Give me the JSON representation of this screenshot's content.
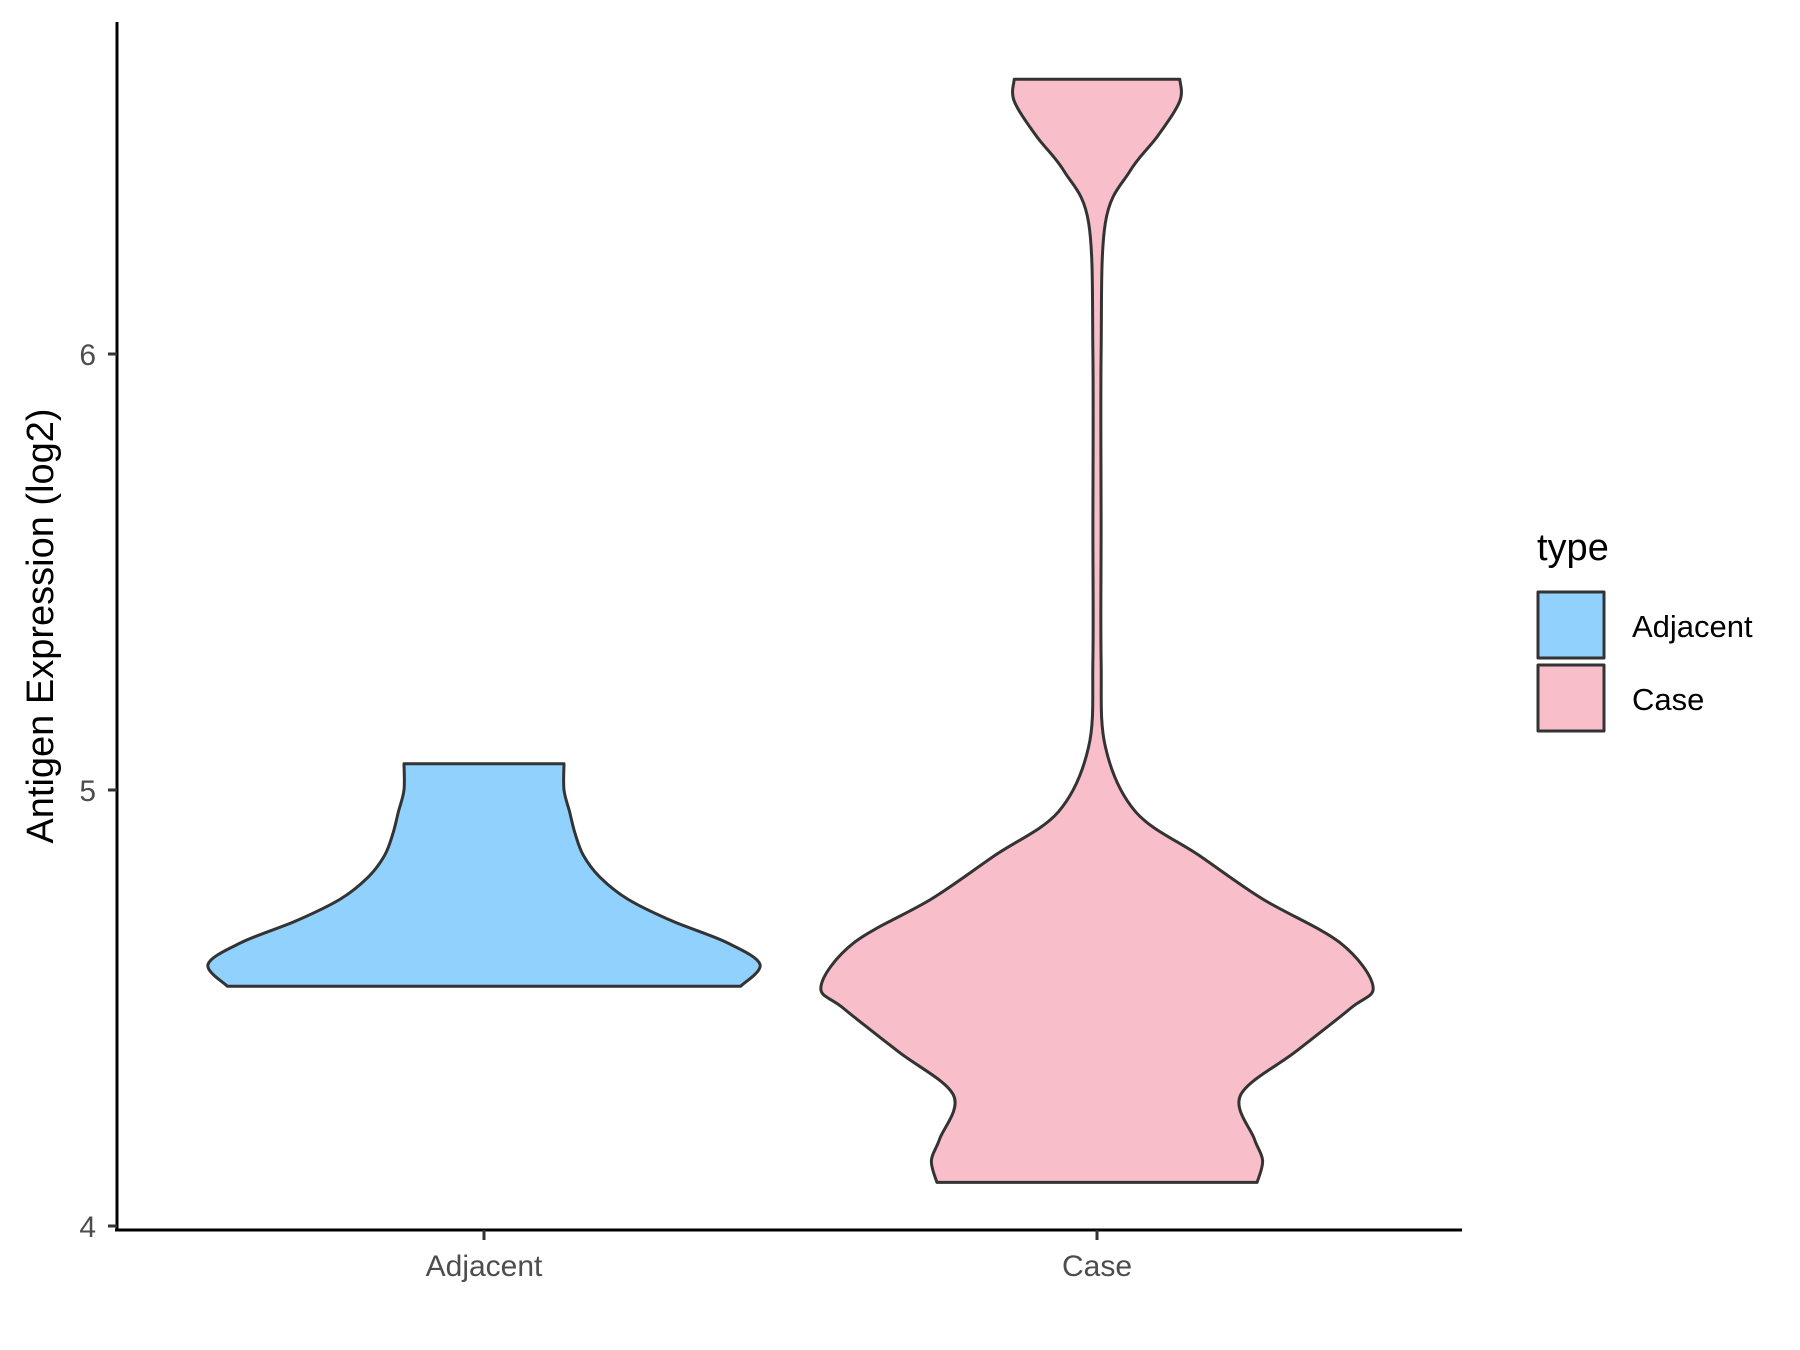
{
  "chart_data": {
    "type": "violin",
    "title": "",
    "xlabel": "",
    "ylabel": "Antigen Expression (log2)",
    "ylim": [
      3.98,
      6.8
    ],
    "yticks": [
      4,
      5,
      6
    ],
    "categories": [
      "Adjacent",
      "Case"
    ],
    "legend": {
      "title": "type",
      "position": "right",
      "entries": [
        {
          "label": "Adjacent",
          "color": "#91d1fd"
        },
        {
          "label": "Case",
          "color": "#f8bfcb"
        }
      ]
    },
    "grid": false,
    "series": [
      {
        "name": "Adjacent",
        "category": "Adjacent",
        "color": "#91d1fd",
        "y_min": 4.55,
        "y_max": 5.06,
        "density_profile": [
          [
            4.55,
            0.93
          ],
          [
            4.6,
            1.0
          ],
          [
            4.65,
            0.88
          ],
          [
            4.7,
            0.68
          ],
          [
            4.75,
            0.52
          ],
          [
            4.8,
            0.42
          ],
          [
            4.85,
            0.36
          ],
          [
            4.9,
            0.33
          ],
          [
            4.95,
            0.31
          ],
          [
            5.0,
            0.29
          ],
          [
            5.06,
            0.29
          ]
        ]
      },
      {
        "name": "Case",
        "category": "Case",
        "color": "#f8bfcb",
        "y_min": 4.1,
        "y_max": 6.63,
        "density_profile": [
          [
            4.1,
            0.58
          ],
          [
            4.15,
            0.6
          ],
          [
            4.2,
            0.57
          ],
          [
            4.3,
            0.52
          ],
          [
            4.4,
            0.72
          ],
          [
            4.5,
            0.92
          ],
          [
            4.55,
            1.0
          ],
          [
            4.65,
            0.88
          ],
          [
            4.75,
            0.6
          ],
          [
            4.85,
            0.37
          ],
          [
            4.95,
            0.14
          ],
          [
            5.1,
            0.03
          ],
          [
            5.3,
            0.015
          ],
          [
            5.6,
            0.015
          ],
          [
            6.0,
            0.015
          ],
          [
            6.3,
            0.03
          ],
          [
            6.42,
            0.12
          ],
          [
            6.5,
            0.22
          ],
          [
            6.58,
            0.3
          ],
          [
            6.63,
            0.3
          ]
        ]
      }
    ]
  }
}
